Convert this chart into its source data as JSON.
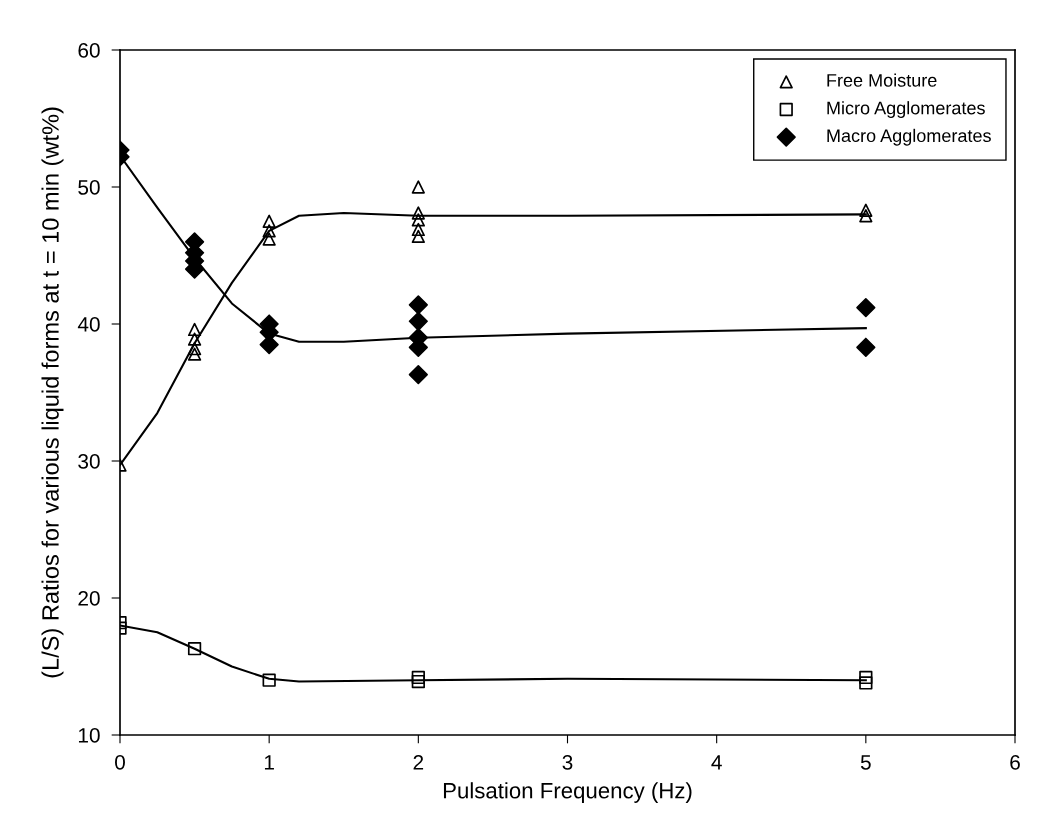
{
  "chart_data": {
    "type": "scatter",
    "xlabel": "Pulsation Frequency (Hz)",
    "ylabel": "(L/S) Ratios for various liquid forms at t = 10 min (wt%)",
    "xlim": [
      0,
      6
    ],
    "xticks": [
      0,
      1,
      2,
      3,
      4,
      5,
      6
    ],
    "ylim": [
      10,
      60
    ],
    "yticks": [
      10,
      20,
      30,
      40,
      50,
      60
    ],
    "grid": false,
    "legend": "top right",
    "series": [
      {
        "name": "Free Moisture",
        "marker": "triangle",
        "color": "#000000",
        "x": [
          0,
          0.5,
          0.5,
          0.5,
          0.5,
          1,
          1,
          1,
          2,
          2,
          2,
          2,
          2,
          5,
          5
        ],
        "values": [
          29.7,
          39.6,
          38.9,
          38.2,
          37.8,
          47.5,
          46.8,
          46.2,
          50.0,
          48.1,
          47.6,
          46.9,
          46.4,
          48.3,
          47.9
        ]
      },
      {
        "name": "Micro Agglomerates",
        "marker": "square",
        "color": "#000000",
        "x": [
          0,
          0,
          0.5,
          1,
          2,
          2,
          5,
          5
        ],
        "values": [
          18.2,
          17.8,
          16.3,
          14.0,
          14.2,
          13.9,
          14.2,
          13.8
        ]
      },
      {
        "name": "Macro Agglomerates",
        "marker": "diamond",
        "color": "#000000",
        "x": [
          0,
          0,
          0.5,
          0.5,
          0.5,
          0.5,
          1,
          1,
          1,
          2,
          2,
          2,
          2,
          2,
          5,
          5
        ],
        "values": [
          52.7,
          52.2,
          46.0,
          45.2,
          44.6,
          44.0,
          40.0,
          39.4,
          38.5,
          41.4,
          40.2,
          39.0,
          38.3,
          36.3,
          41.2,
          38.3
        ]
      },
      {
        "type": "line",
        "color": "#000000",
        "line_style": "solid",
        "x": [
          0,
          0.25,
          0.5,
          0.75,
          1,
          1.2,
          1.5,
          2,
          3,
          5
        ],
        "values": [
          29.7,
          33.5,
          38.6,
          43.0,
          46.8,
          47.9,
          48.1,
          47.9,
          47.9,
          48.0
        ]
      },
      {
        "type": "line",
        "color": "#000000",
        "line_style": "solid",
        "x": [
          0,
          0.25,
          0.5,
          0.75,
          1,
          1.2,
          1.5,
          2,
          3,
          5
        ],
        "values": [
          52.3,
          48.5,
          44.8,
          41.5,
          39.3,
          38.7,
          38.7,
          39.0,
          39.3,
          39.7
        ]
      },
      {
        "type": "line",
        "color": "#000000",
        "line_style": "solid",
        "x": [
          0,
          0.25,
          0.5,
          0.75,
          1,
          1.2,
          2,
          3,
          5
        ],
        "values": [
          18.0,
          17.5,
          16.3,
          15.0,
          14.1,
          13.9,
          14.0,
          14.1,
          14.0
        ]
      }
    ]
  }
}
